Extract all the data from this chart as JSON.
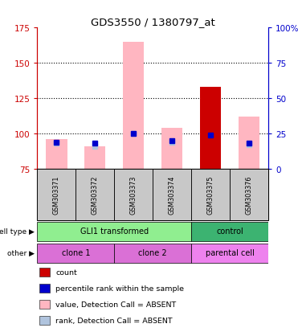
{
  "title": "GDS3550 / 1380797_at",
  "samples": [
    "GSM303371",
    "GSM303372",
    "GSM303373",
    "GSM303374",
    "GSM303375",
    "GSM303376"
  ],
  "ylim_left": [
    75,
    175
  ],
  "ylim_right": [
    0,
    100
  ],
  "yticks_left": [
    75,
    100,
    125,
    150,
    175
  ],
  "yticks_right": [
    0,
    25,
    50,
    75,
    100
  ],
  "ytick_labels_right": [
    "0",
    "25",
    "50",
    "75",
    "100%"
  ],
  "bar_bottom": 75,
  "pink_bars": [
    96,
    91,
    165,
    104,
    0,
    112
  ],
  "red_bars": [
    0,
    0,
    0,
    0,
    133,
    0
  ],
  "blue_dots": [
    94,
    93,
    100,
    95,
    99,
    93
  ],
  "pink_rank_squares": [
    93,
    91,
    100,
    94,
    0,
    92
  ],
  "pink_rank_sq_present": [
    true,
    true,
    true,
    true,
    false,
    true
  ],
  "cell_type_groups": [
    {
      "label": "GLI1 transformed",
      "cols": [
        0,
        1,
        2,
        3
      ],
      "color": "#90EE90"
    },
    {
      "label": "control",
      "cols": [
        4,
        5
      ],
      "color": "#3CB371"
    }
  ],
  "other_groups": [
    {
      "label": "clone 1",
      "cols": [
        0,
        1
      ],
      "color": "#DA70D6"
    },
    {
      "label": "clone 2",
      "cols": [
        2,
        3
      ],
      "color": "#DA70D6"
    },
    {
      "label": "parental cell",
      "cols": [
        4,
        5
      ],
      "color": "#EE82EE"
    }
  ],
  "legend_items": [
    {
      "color": "#CC0000",
      "label": "count"
    },
    {
      "color": "#0000CC",
      "label": "percentile rank within the sample"
    },
    {
      "color": "#FFB6C1",
      "label": "value, Detection Call = ABSENT"
    },
    {
      "color": "#B0C4DE",
      "label": "rank, Detection Call = ABSENT"
    }
  ],
  "left_color": "#CC0000",
  "right_color": "#0000CC",
  "bar_width": 0.55,
  "sample_bg": "#C8C8C8",
  "grid_color": "#000000",
  "plot_box_color": "#000000"
}
